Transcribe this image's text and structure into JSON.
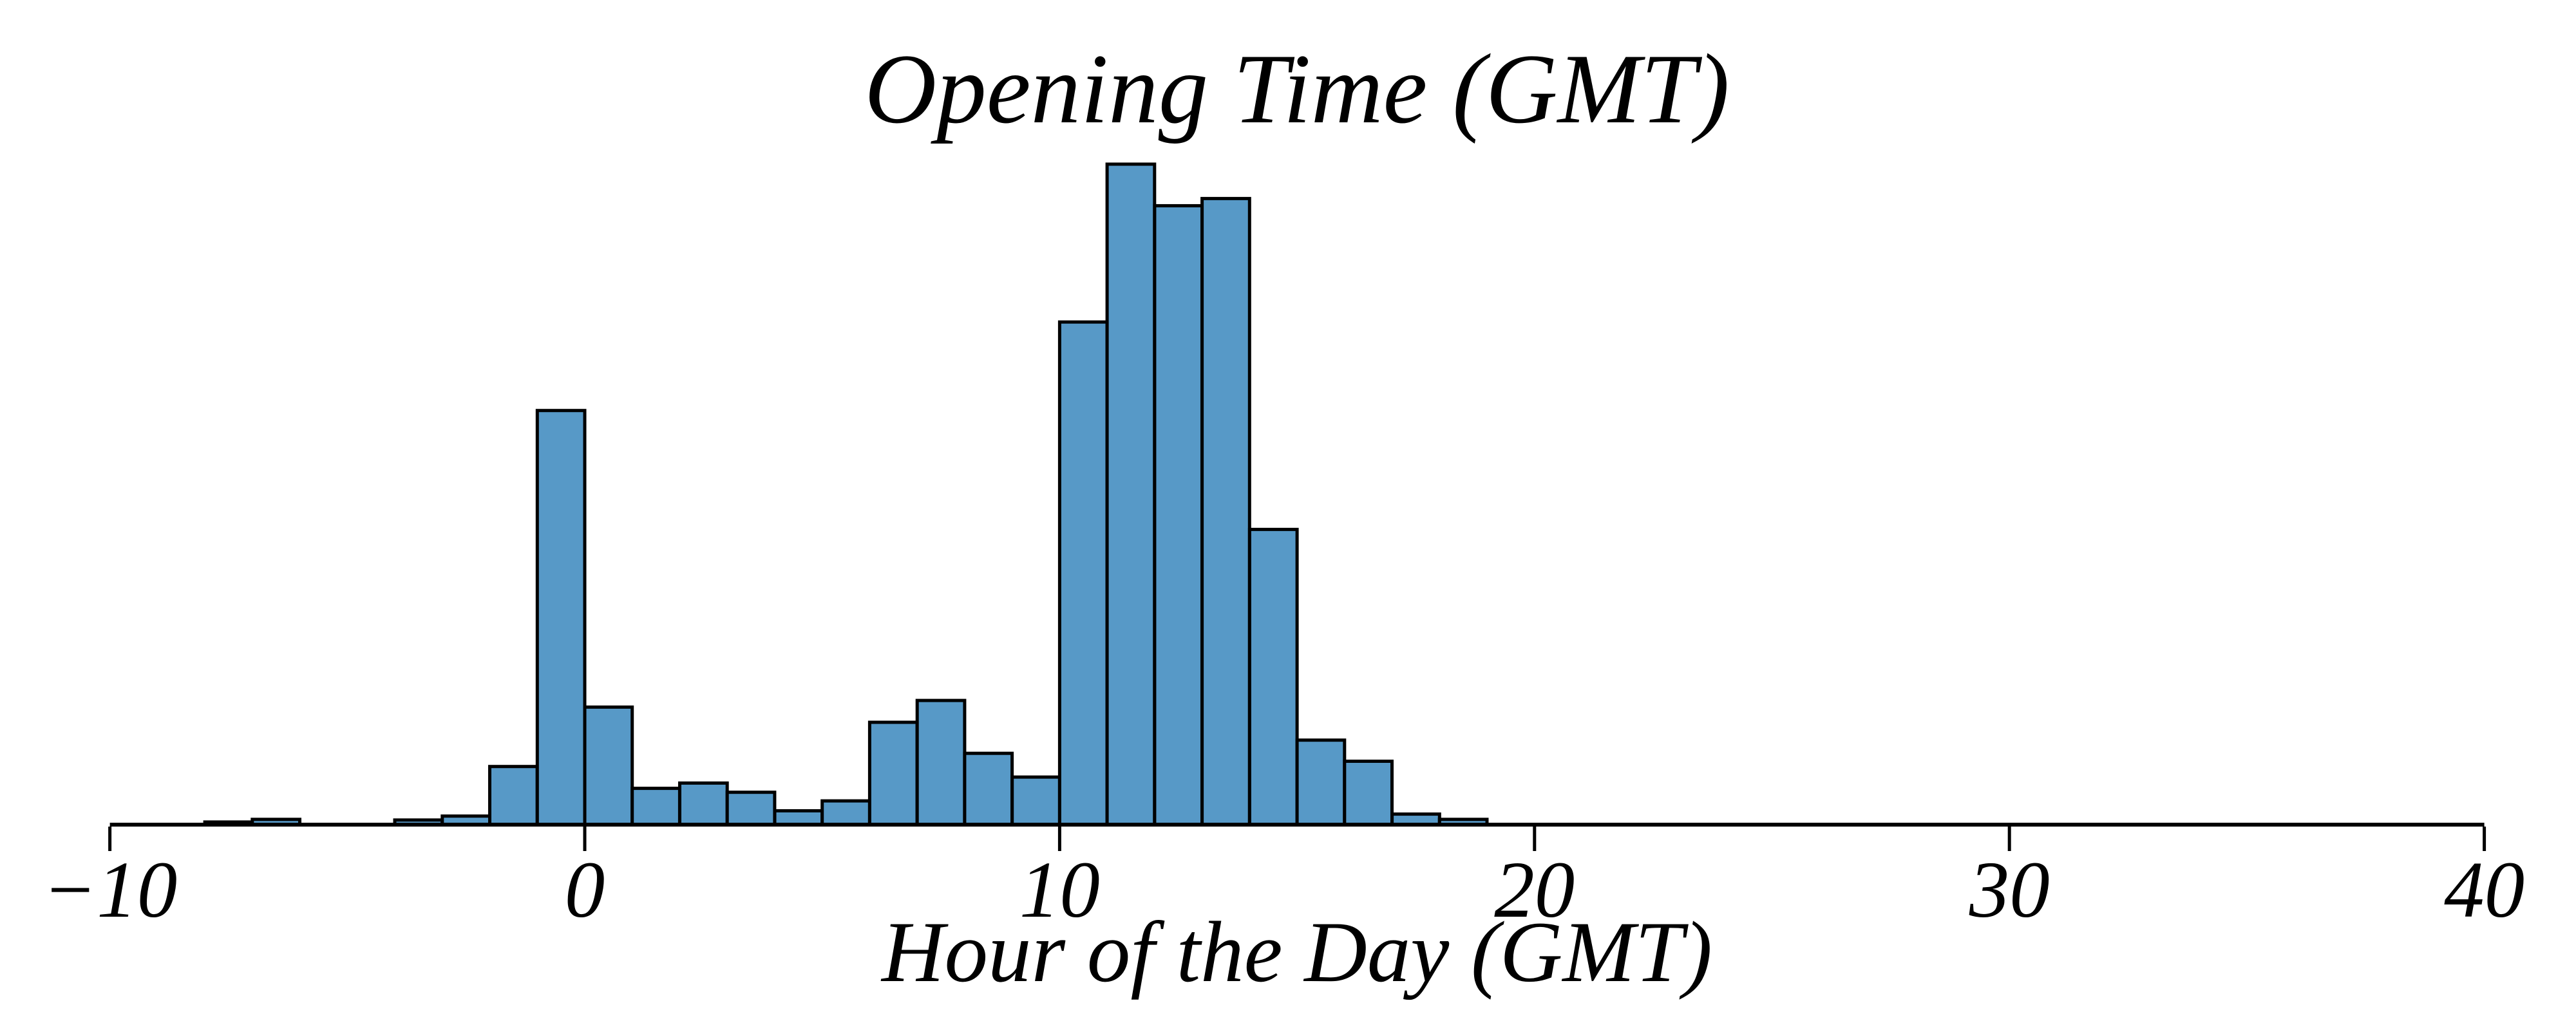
{
  "title": "Opening Time (GMT)",
  "xlabel": "Hour of the Day (GMT)",
  "colors": {
    "background": "#ffffff",
    "bar_fill": "#5799c7",
    "bar_edge": "#000000",
    "axis": "#000000",
    "text": "#000000"
  },
  "x_axis": {
    "min": -10,
    "max": 40,
    "ticks": [
      -10,
      0,
      10,
      20,
      30,
      40
    ],
    "tick_labels": [
      "−10",
      "0",
      "10",
      "20",
      "30",
      "40"
    ],
    "side": "bottom-only"
  },
  "y_axis": {
    "visible": false,
    "note": "no y-axis spine, ticks or labels are drawn; bar heights below are normalized to the tallest bin = 1.0"
  },
  "chart_data": {
    "type": "bar",
    "subtype": "histogram",
    "title": "Opening Time (GMT)",
    "xlabel": "Hour of the Day (GMT)",
    "ylabel": "",
    "xlim": [
      -10,
      40
    ],
    "grid": false,
    "legend": "none",
    "bin_width": 1,
    "bin_starts": [
      -10,
      -9,
      -8,
      -7,
      -6,
      -5,
      -4,
      -3,
      -2,
      -1,
      0,
      1,
      2,
      3,
      4,
      5,
      6,
      7,
      8,
      9,
      10,
      11,
      12,
      13,
      14,
      15,
      16,
      17,
      18,
      19
    ],
    "values": [
      0,
      0,
      0.004,
      0.008,
      0,
      0,
      0.007,
      0.013,
      0.088,
      0.627,
      0.178,
      0.055,
      0.063,
      0.049,
      0.021,
      0.036,
      0.155,
      0.188,
      0.108,
      0.072,
      0.761,
      1.0,
      0.937,
      0.948,
      0.447,
      0.128,
      0.096,
      0.016,
      0.008,
      0
    ],
    "values_unit": "fraction of tallest bin (y scale not shown in figure)"
  }
}
